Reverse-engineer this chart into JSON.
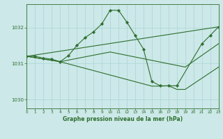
{
  "bg_color": "#cce8e8",
  "grid_color": "#aad4d4",
  "line_color": "#2d6e2d",
  "title": "Graphe pression niveau de la mer (hPa)",
  "xlim": [
    0,
    23
  ],
  "ylim": [
    1029.75,
    1032.65
  ],
  "yticks": [
    1030,
    1031,
    1032
  ],
  "xticks": [
    0,
    1,
    2,
    3,
    4,
    5,
    6,
    7,
    8,
    9,
    10,
    11,
    12,
    13,
    14,
    15,
    16,
    17,
    18,
    19,
    20,
    21,
    22,
    23
  ],
  "curve1_x": [
    0,
    1,
    2,
    3,
    4,
    5,
    6,
    7,
    8,
    9,
    10,
    11,
    12,
    13,
    14,
    15,
    16,
    17,
    18,
    21,
    22,
    23
  ],
  "curve1_y": [
    1031.2,
    1031.2,
    1031.15,
    1031.12,
    1031.05,
    1031.22,
    1031.5,
    1031.72,
    1031.88,
    1032.1,
    1032.48,
    1032.48,
    1032.15,
    1031.78,
    1031.4,
    1030.5,
    1030.38,
    1030.38,
    1030.38,
    1031.55,
    1031.78,
    1032.02
  ],
  "line2_x": [
    0,
    23
  ],
  "line2_y": [
    1031.2,
    1032.02
  ],
  "line3_x": [
    0,
    4,
    10,
    19,
    23
  ],
  "line3_y": [
    1031.2,
    1031.05,
    1031.32,
    1030.9,
    1031.55
  ],
  "line4_x": [
    0,
    4,
    15,
    16,
    17,
    18,
    19,
    23
  ],
  "line4_y": [
    1031.2,
    1031.05,
    1030.37,
    1030.37,
    1030.38,
    1030.28,
    1030.28,
    1030.9
  ]
}
